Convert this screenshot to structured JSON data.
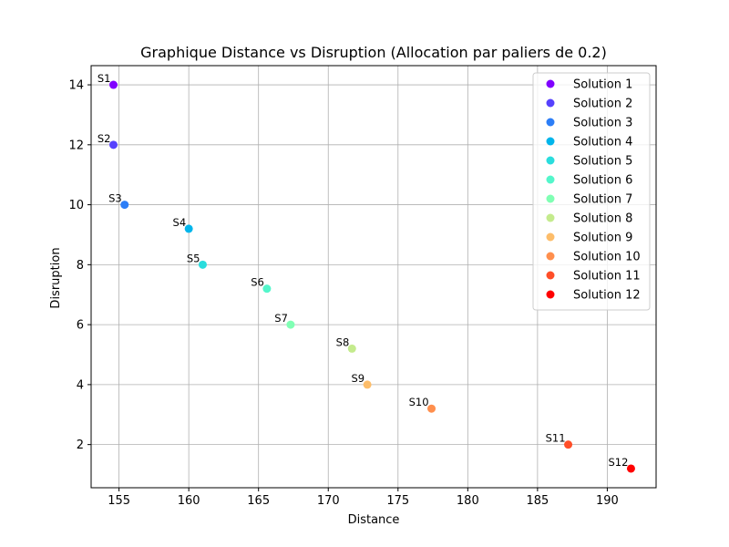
{
  "chart_data": {
    "type": "scatter",
    "title": "Graphique Distance vs Disruption (Allocation par paliers de 0.2)",
    "xlabel": "Distance",
    "ylabel": "Disruption",
    "xlim": [
      153.0,
      193.5
    ],
    "ylim": [
      0.56,
      14.64
    ],
    "xticks": [
      155,
      160,
      165,
      170,
      175,
      180,
      185,
      190
    ],
    "yticks": [
      2,
      4,
      6,
      8,
      10,
      12,
      14
    ],
    "grid": true,
    "legend_position": "top-right",
    "series": [
      {
        "name": "Solution 1",
        "label": "S1",
        "color": "#8000ff",
        "x": 154.6,
        "y": 14.0
      },
      {
        "name": "Solution 2",
        "label": "S2",
        "color": "#5641fd",
        "x": 154.6,
        "y": 12.0
      },
      {
        "name": "Solution 3",
        "label": "S3",
        "color": "#2c7ef7",
        "x": 155.4,
        "y": 10.0
      },
      {
        "name": "Solution 4",
        "label": "S4",
        "color": "#00b5eb",
        "x": 160.0,
        "y": 9.2
      },
      {
        "name": "Solution 5",
        "label": "S5",
        "color": "#2adddd",
        "x": 161.0,
        "y": 8.0
      },
      {
        "name": "Solution 6",
        "label": "S6",
        "color": "#54f6cb",
        "x": 165.6,
        "y": 7.2
      },
      {
        "name": "Solution 7",
        "label": "S7",
        "color": "#80ffb4",
        "x": 167.3,
        "y": 6.0
      },
      {
        "name": "Solution 8",
        "label": "S8",
        "color": "#c4eb8d",
        "x": 171.7,
        "y": 5.2
      },
      {
        "name": "Solution 9",
        "label": "S9",
        "color": "#fdbd6a",
        "x": 172.8,
        "y": 4.0
      },
      {
        "name": "Solution 10",
        "label": "S10",
        "color": "#ff8f4d",
        "x": 177.4,
        "y": 3.2
      },
      {
        "name": "Solution 11",
        "label": "S11",
        "color": "#ff4e28",
        "x": 187.2,
        "y": 2.0
      },
      {
        "name": "Solution 12",
        "label": "S12",
        "color": "#ff0000",
        "x": 191.7,
        "y": 1.2
      }
    ]
  }
}
